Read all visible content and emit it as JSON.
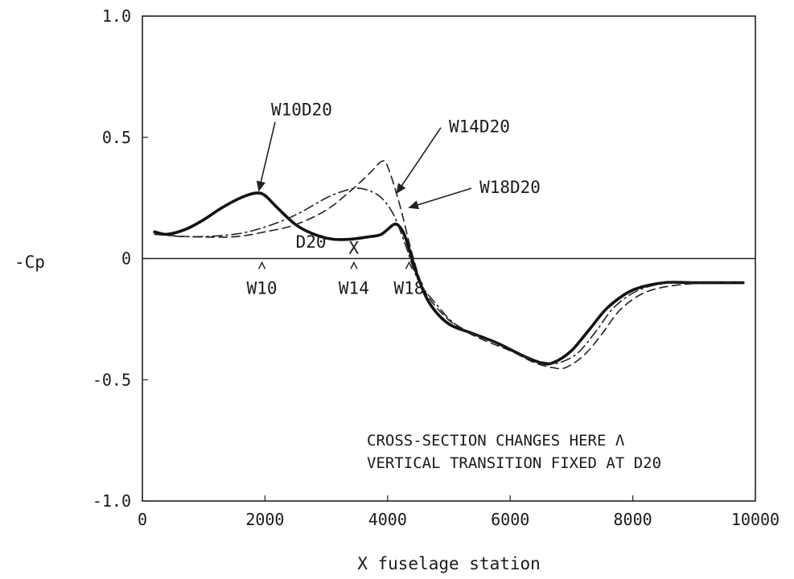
{
  "chart_data": {
    "type": "line",
    "xlabel": "X fuselage station",
    "ylabel": "-Cp",
    "xlim": [
      0,
      10000
    ],
    "ylim": [
      -1.0,
      1.0
    ],
    "x_ticks": [
      "0",
      "2000",
      "4000",
      "6000",
      "8000",
      "10000"
    ],
    "x_tick_values": [
      0,
      2000,
      4000,
      6000,
      8000,
      10000
    ],
    "y_ticks": [
      "1.0",
      "0.5",
      "0",
      "-0.5",
      "-1.0"
    ],
    "y_tick_values": [
      1.0,
      0.5,
      0,
      -0.5,
      -1.0
    ],
    "grid": false,
    "series": [
      {
        "name": "W10D20",
        "style": "solid-thick",
        "color": "#111111",
        "x": [
          200,
          400,
          700,
          1000,
          1300,
          1600,
          1850,
          2000,
          2200,
          2500,
          2800,
          3100,
          3400,
          3700,
          3900,
          4100,
          4200,
          4300,
          4500,
          4700,
          5000,
          5400,
          5800,
          6200,
          6500,
          6700,
          7000,
          7300,
          7600,
          8000,
          8500,
          9000,
          9800
        ],
        "y": [
          0.11,
          0.1,
          0.12,
          0.16,
          0.21,
          0.25,
          0.27,
          0.26,
          0.21,
          0.14,
          0.1,
          0.08,
          0.08,
          0.09,
          0.1,
          0.14,
          0.13,
          0.08,
          -0.08,
          -0.19,
          -0.27,
          -0.31,
          -0.35,
          -0.4,
          -0.43,
          -0.43,
          -0.38,
          -0.29,
          -0.2,
          -0.13,
          -0.1,
          -0.1,
          -0.1
        ]
      },
      {
        "name": "W14D20",
        "style": "dash-dot",
        "color": "#222222",
        "x": [
          200,
          800,
          1500,
          2000,
          2500,
          3000,
          3300,
          3500,
          3700,
          3900,
          4100,
          4300,
          4500,
          4800,
          5100,
          5500,
          5900,
          6300,
          6600,
          6800,
          7100,
          7400,
          7700,
          8100,
          8600,
          9200,
          9800
        ],
        "y": [
          0.1,
          0.09,
          0.1,
          0.13,
          0.18,
          0.25,
          0.28,
          0.29,
          0.28,
          0.25,
          0.18,
          0.05,
          -0.09,
          -0.19,
          -0.27,
          -0.32,
          -0.36,
          -0.41,
          -0.43,
          -0.43,
          -0.39,
          -0.3,
          -0.2,
          -0.13,
          -0.1,
          -0.1,
          -0.1
        ]
      },
      {
        "name": "W18D20",
        "style": "dashed",
        "color": "#222222",
        "x": [
          200,
          800,
          1500,
          2000,
          2500,
          3000,
          3400,
          3700,
          3900,
          4000,
          4200,
          4400,
          4600,
          4900,
          5200,
          5600,
          6000,
          6400,
          6700,
          6900,
          7200,
          7500,
          7800,
          8200,
          8700,
          9300,
          9800
        ],
        "y": [
          0.1,
          0.09,
          0.09,
          0.11,
          0.14,
          0.2,
          0.28,
          0.35,
          0.4,
          0.38,
          0.22,
          0.02,
          -0.13,
          -0.23,
          -0.29,
          -0.34,
          -0.38,
          -0.43,
          -0.45,
          -0.45,
          -0.4,
          -0.31,
          -0.21,
          -0.14,
          -0.11,
          -0.1,
          -0.1
        ]
      }
    ],
    "annotations": [
      {
        "text": "W10D20",
        "x": 2100,
        "y": 0.59,
        "arrow_to": [
          1900,
          0.28
        ]
      },
      {
        "text": "W14D20",
        "x": 5000,
        "y": 0.52,
        "arrow_to": [
          4150,
          0.27
        ]
      },
      {
        "text": "W18D20",
        "x": 5500,
        "y": 0.27,
        "arrow_to": [
          4350,
          0.21
        ]
      },
      {
        "text": "D20",
        "x": 2750,
        "y": 0.045
      },
      {
        "text": "X",
        "x": 3450,
        "y": 0.02
      }
    ],
    "markers": [
      {
        "text": "W10",
        "x": 1950
      },
      {
        "text": "W14",
        "x": 3450
      },
      {
        "text": "W18",
        "x": 4350
      }
    ],
    "notes": [
      "CROSS-SECTION CHANGES HERE Λ",
      "VERTICAL TRANSITION FIXED AT D20"
    ]
  }
}
